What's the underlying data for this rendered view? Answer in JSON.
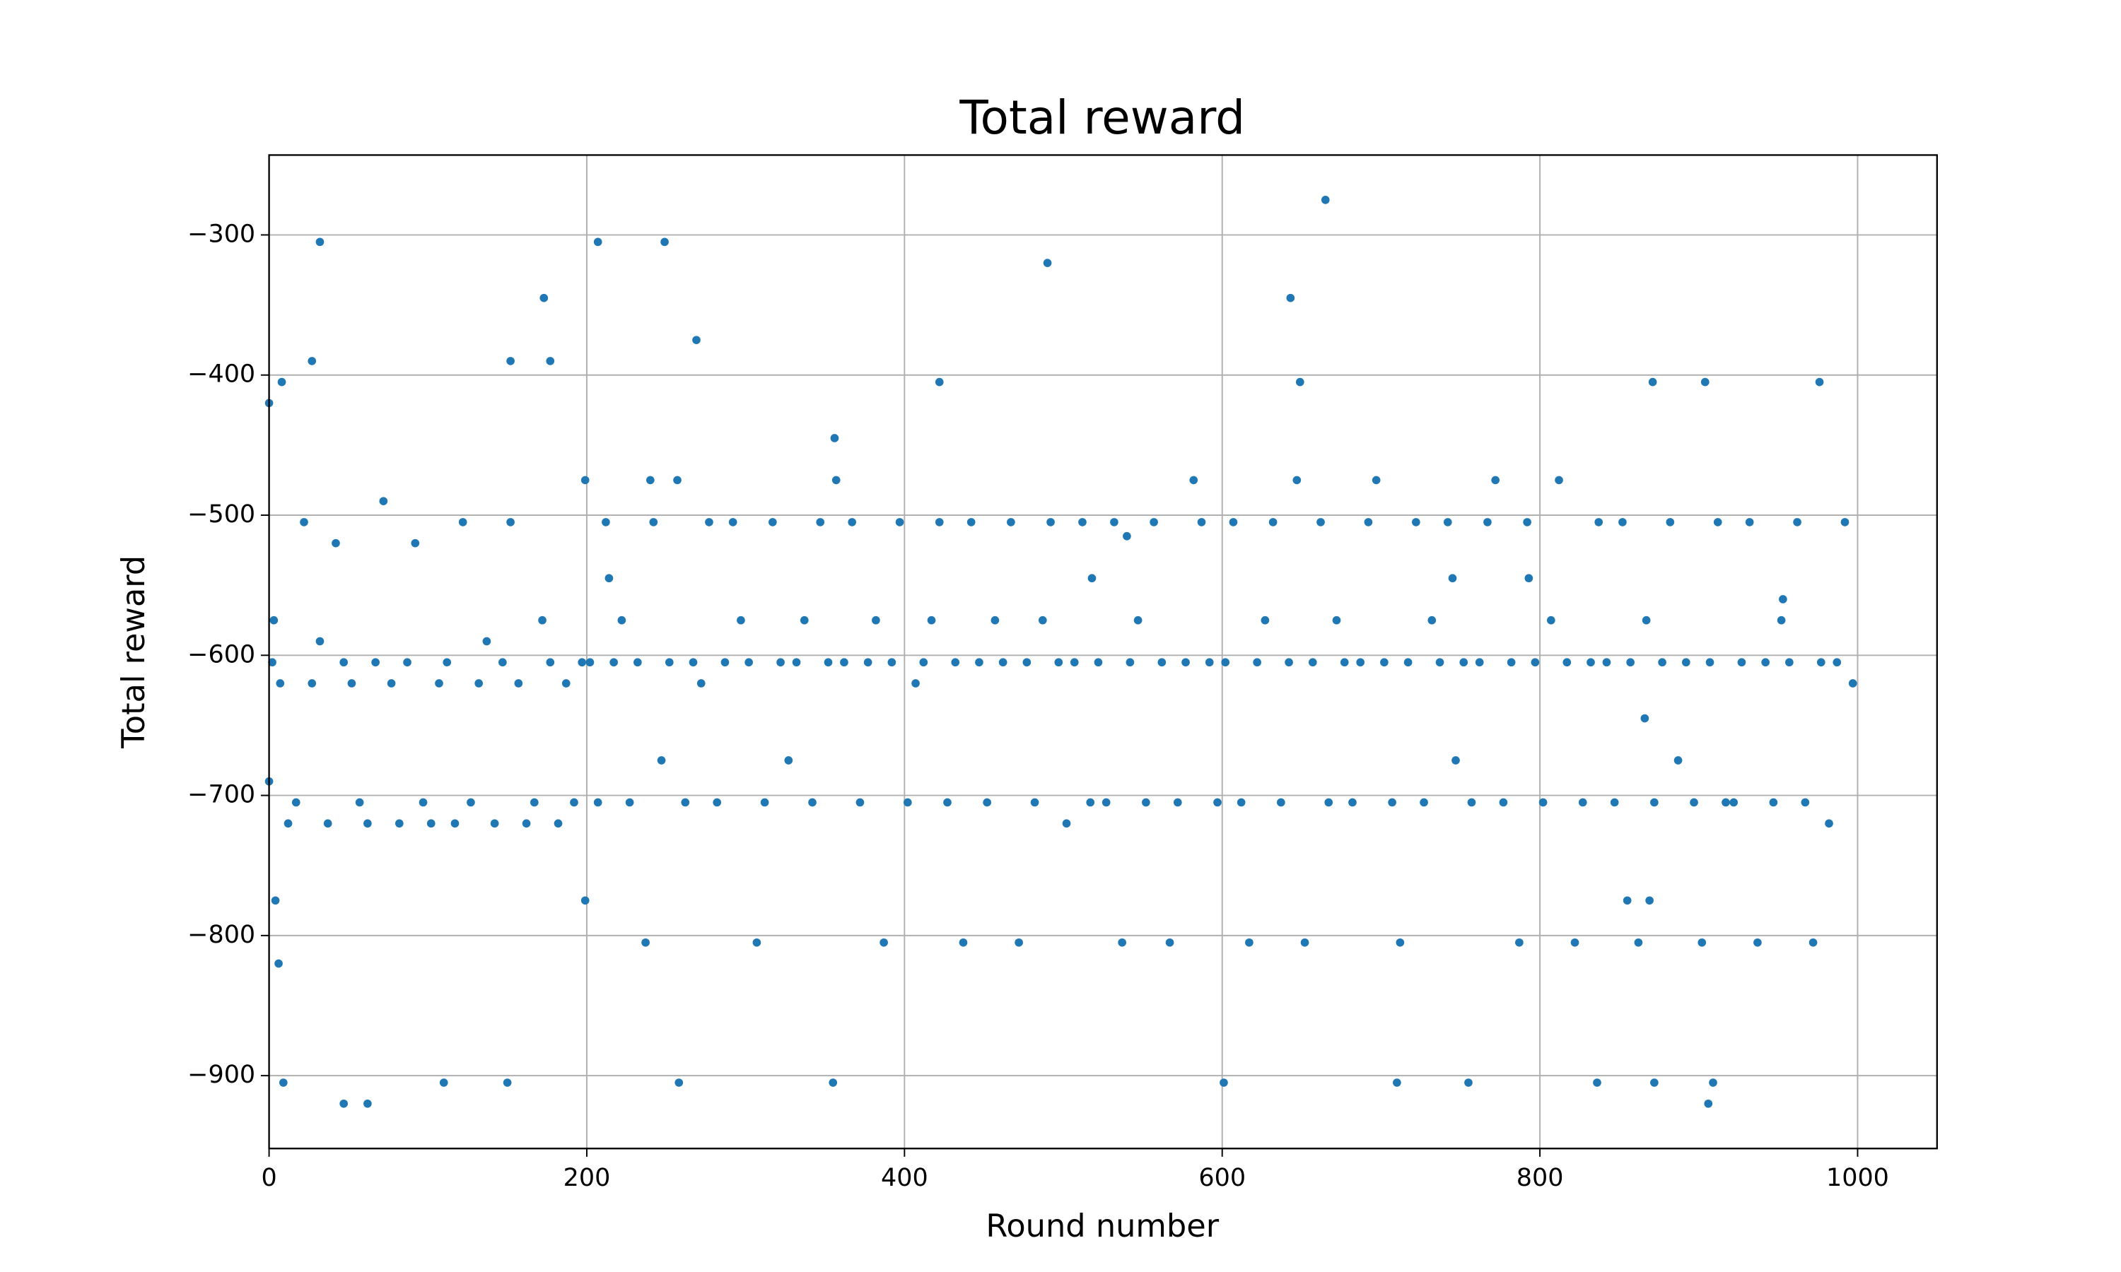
{
  "chart_data": {
    "type": "scatter",
    "title": "Total reward",
    "x_label": "Round number",
    "y_label": "Total reward",
    "color": "#1f77b4",
    "grid": true,
    "xlim": [
      0,
      1050
    ],
    "xticks": [
      0,
      200,
      400,
      600,
      800,
      1000
    ],
    "ylim": [
      -952,
      -243
    ],
    "yticks": [
      {
        "value": -900,
        "label": "−900"
      },
      {
        "value": -800,
        "label": "−800"
      },
      {
        "value": -700,
        "label": "−700"
      },
      {
        "value": -600,
        "label": "−600"
      },
      {
        "value": -500,
        "label": "−500"
      },
      {
        "value": -400,
        "label": "−400"
      },
      {
        "value": -300,
        "label": "−300"
      }
    ],
    "x": [
      2,
      7,
      12,
      17,
      22,
      27,
      32,
      37,
      42,
      47,
      52,
      57,
      62,
      67,
      72,
      77,
      82,
      87,
      92,
      97,
      102,
      107,
      112,
      117,
      122,
      127,
      132,
      137,
      142,
      147,
      152,
      157,
      162,
      167,
      172,
      177,
      182,
      187,
      192,
      197,
      202,
      207,
      212,
      217,
      222,
      227,
      232,
      237,
      242,
      247,
      252,
      257,
      262,
      267,
      272,
      277,
      282,
      287,
      292,
      297,
      302,
      307,
      312,
      317,
      322,
      327,
      332,
      337,
      342,
      347,
      352,
      357,
      362,
      367,
      372,
      377,
      382,
      387,
      392,
      397,
      402,
      407,
      412,
      417,
      422,
      427,
      432,
      437,
      442,
      447,
      452,
      457,
      462,
      467,
      472,
      477,
      482,
      487,
      492,
      497,
      502,
      507,
      512,
      517,
      522,
      527,
      532,
      537,
      542,
      547,
      552,
      557,
      562,
      567,
      572,
      577,
      582,
      587,
      592,
      597,
      602,
      607,
      612,
      617,
      622,
      627,
      632,
      637,
      642,
      647,
      652,
      657,
      662,
      667,
      672,
      677,
      682,
      687,
      692,
      697,
      702,
      707,
      712,
      717,
      722,
      727,
      732,
      737,
      742,
      747,
      752,
      757,
      762,
      767,
      772,
      777,
      782,
      787,
      792,
      797,
      802,
      807,
      812,
      817,
      822,
      827,
      832,
      837,
      842,
      847,
      852,
      857,
      862,
      867,
      872,
      877,
      882,
      887,
      892,
      897,
      902,
      907,
      912,
      917,
      922,
      927,
      932,
      937,
      942,
      947,
      952,
      957,
      962,
      967,
      972,
      977,
      982,
      987,
      992,
      997,
      0,
      0,
      3,
      4,
      6,
      8,
      9,
      27,
      32,
      47,
      62,
      110,
      150,
      152,
      173,
      177,
      199,
      199,
      207,
      214,
      240,
      249,
      258,
      269,
      355,
      356,
      422,
      490,
      518,
      540,
      601,
      643,
      649,
      665,
      710,
      745,
      755,
      793,
      836,
      855,
      866,
      869,
      871,
      872,
      904,
      906,
      909,
      953,
      976
    ],
    "values": [
      -605,
      -620,
      -720,
      -705,
      -505,
      -620,
      -590,
      -720,
      -520,
      -605,
      -620,
      -705,
      -720,
      -605,
      -490,
      -620,
      -720,
      -605,
      -520,
      -705,
      -720,
      -620,
      -605,
      -720,
      -505,
      -705,
      -620,
      -590,
      -720,
      -605,
      -505,
      -620,
      -720,
      -705,
      -575,
      -605,
      -720,
      -620,
      -705,
      -605,
      -605,
      -705,
      -505,
      -605,
      -575,
      -705,
      -605,
      -805,
      -505,
      -675,
      -605,
      -475,
      -705,
      -605,
      -620,
      -505,
      -705,
      -605,
      -505,
      -575,
      -605,
      -805,
      -705,
      -505,
      -605,
      -675,
      -605,
      -575,
      -705,
      -505,
      -605,
      -475,
      -605,
      -505,
      -705,
      -605,
      -575,
      -805,
      -605,
      -505,
      -705,
      -620,
      -605,
      -575,
      -505,
      -705,
      -605,
      -805,
      -505,
      -605,
      -705,
      -575,
      -605,
      -505,
      -805,
      -605,
      -705,
      -575,
      -505,
      -605,
      -720,
      -605,
      -505,
      -705,
      -605,
      -705,
      -505,
      -805,
      -605,
      -575,
      -705,
      -505,
      -605,
      -805,
      -705,
      -605,
      -475,
      -505,
      -605,
      -705,
      -605,
      -505,
      -705,
      -805,
      -605,
      -575,
      -505,
      -705,
      -605,
      -475,
      -805,
      -605,
      -505,
      -705,
      -575,
      -605,
      -705,
      -605,
      -505,
      -475,
      -605,
      -705,
      -805,
      -605,
      -505,
      -705,
      -575,
      -605,
      -505,
      -675,
      -605,
      -705,
      -605,
      -505,
      -475,
      -705,
      -605,
      -805,
      -505,
      -605,
      -705,
      -575,
      -475,
      -605,
      -805,
      -705,
      -605,
      -505,
      -605,
      -705,
      -505,
      -605,
      -805,
      -575,
      -705,
      -605,
      -505,
      -675,
      -605,
      -705,
      -805,
      -605,
      -505,
      -705,
      -705,
      -605,
      -505,
      -805,
      -605,
      -705,
      -575,
      -605,
      -505,
      -705,
      -805,
      -605,
      -720,
      -605,
      -505,
      -620,
      -420,
      -690,
      -575,
      -775,
      -820,
      -405,
      -905,
      -390,
      -305,
      -920,
      -920,
      -905,
      -905,
      -390,
      -345,
      -390,
      -475,
      -775,
      -305,
      -545,
      -475,
      -305,
      -905,
      -375,
      -905,
      -445,
      -405,
      -320,
      -545,
      -515,
      -905,
      -345,
      -405,
      -275,
      -905,
      -545,
      -905,
      -545,
      -905,
      -775,
      -645,
      -775,
      -405,
      -905,
      -405,
      -920,
      -905,
      -560,
      -405
    ]
  }
}
